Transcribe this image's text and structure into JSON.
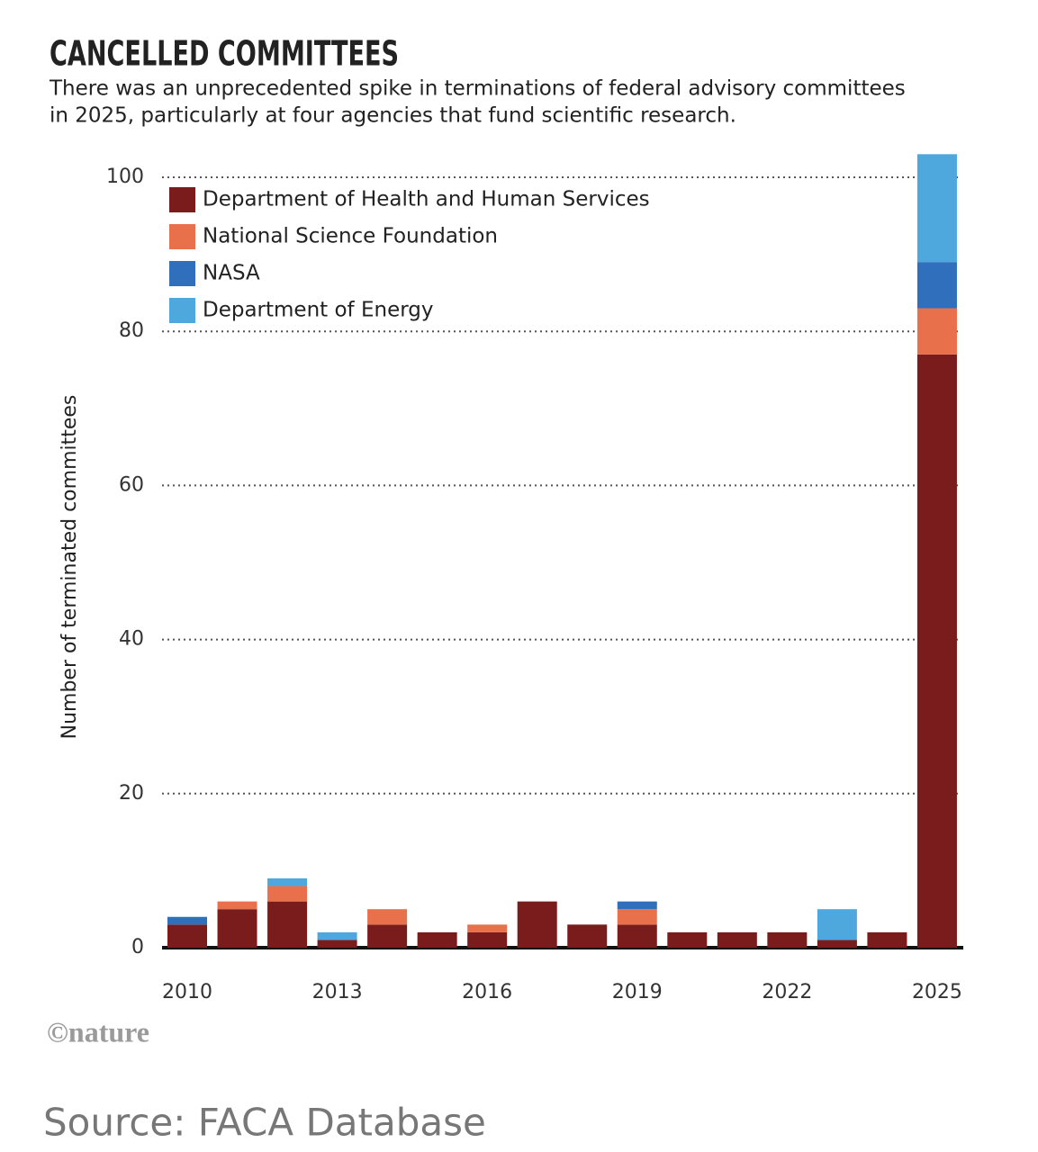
{
  "chart_data": {
    "type": "stacked_bar",
    "title": "CANCELLED COMMITTEES",
    "subtitle": [
      "There was an unprecedented spike in terminations of federal advisory committees",
      "in 2025, particularly at four agencies that fund scientific research."
    ],
    "y_label": "Number of terminated committees",
    "categories": [
      "2010",
      null,
      null,
      "2013",
      null,
      null,
      "2016",
      null,
      null,
      "2019",
      null,
      null,
      "2022",
      null,
      null,
      "2025"
    ],
    "series": [
      {
        "name": "Department of Health and Human Services",
        "color": "#7a1c1c",
        "values": [
          3,
          5,
          6,
          1,
          3,
          2,
          2,
          6,
          3,
          3,
          2,
          2,
          2,
          1,
          2,
          77
        ]
      },
      {
        "name": "National Science Foundation",
        "color": "#e8704a",
        "values": [
          0,
          1,
          2,
          0,
          2,
          0,
          1,
          0,
          0,
          2,
          0,
          0,
          0,
          0,
          0,
          6
        ]
      },
      {
        "name": "NASA",
        "color": "#2f6fbb",
        "values": [
          1,
          0,
          0,
          0,
          0,
          0,
          0,
          0,
          0,
          1,
          0,
          0,
          0,
          0,
          0,
          6
        ]
      },
      {
        "name": "Department of Energy",
        "color": "#4ea8de",
        "values": [
          0,
          0,
          1,
          1,
          0,
          0,
          0,
          0,
          0,
          0,
          0,
          0,
          0,
          4,
          0,
          14
        ]
      }
    ],
    "ylim": [
      0,
      103
    ],
    "yticks": [
      0,
      20,
      40,
      60,
      80,
      100
    ],
    "grid": true,
    "legend": "top-left",
    "credit": "©nature",
    "source": "Source: FACA Database"
  }
}
